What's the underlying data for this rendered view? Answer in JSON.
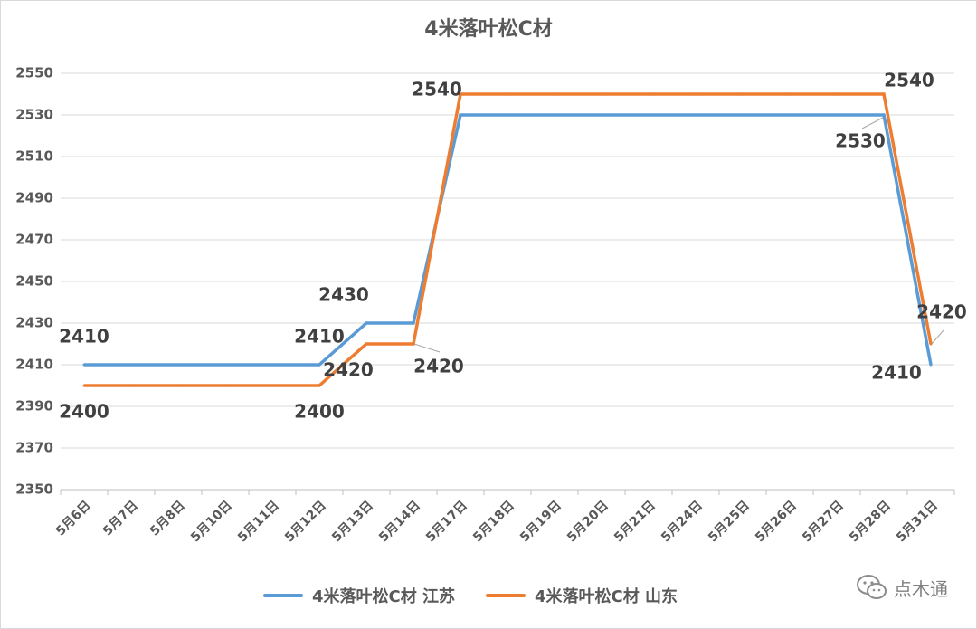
{
  "chart_data": {
    "type": "line",
    "title": "4米落叶松C材",
    "categories": [
      "5月6日",
      "5月7日",
      "5月8日",
      "5月10日",
      "5月11日",
      "5月12日",
      "5月13日",
      "5月14日",
      "5月17日",
      "5月18日",
      "5月19日",
      "5月20日",
      "5月21日",
      "5月24日",
      "5月25日",
      "5月26日",
      "5月27日",
      "5月28日",
      "5月31日"
    ],
    "ylim": [
      2350,
      2550
    ],
    "yticks": [
      2350,
      2370,
      2390,
      2410,
      2430,
      2450,
      2470,
      2490,
      2510,
      2530,
      2550
    ],
    "grid": true,
    "legend_position": "bottom",
    "series": [
      {
        "name": "4米落叶松C材 江苏",
        "color": "#5B9BD5",
        "values": [
          2410,
          2410,
          2410,
          2410,
          2410,
          2410,
          2430,
          2430,
          2530,
          2530,
          2530,
          2530,
          2530,
          2530,
          2530,
          2530,
          2530,
          2530,
          2410
        ],
        "data_labels": [
          {
            "index": 0,
            "text": "2410"
          },
          {
            "index": 5,
            "text": "2410"
          },
          {
            "index": 6,
            "text": "2430"
          },
          {
            "index": 17,
            "text": "2530"
          },
          {
            "index": 18,
            "text": "2410"
          }
        ]
      },
      {
        "name": "4米落叶松C材 山东",
        "color": "#ED7D31",
        "values": [
          2400,
          2400,
          2400,
          2400,
          2400,
          2400,
          2420,
          2420,
          2540,
          2540,
          2540,
          2540,
          2540,
          2540,
          2540,
          2540,
          2540,
          2540,
          2420
        ],
        "data_labels": [
          {
            "index": 0,
            "text": "2400"
          },
          {
            "index": 5,
            "text": "2400"
          },
          {
            "index": 6,
            "text": "2420"
          },
          {
            "index": 7,
            "text": "2420"
          },
          {
            "index": 8,
            "text": "2540"
          },
          {
            "index": 17,
            "text": "2540"
          },
          {
            "index": 18,
            "text": "2420"
          }
        ]
      }
    ]
  },
  "watermark": {
    "text": "点木通",
    "icon": "wechat-icon"
  }
}
